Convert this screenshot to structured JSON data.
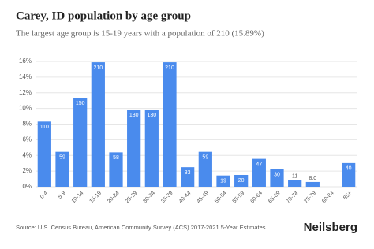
{
  "chart_data": {
    "type": "bar",
    "title": "Carey, ID population by age group",
    "subtitle": "The largest age group is 15-19 years with a population of 210 (15.89%)",
    "categories": [
      "0-4",
      "5-9",
      "10-14",
      "15-19",
      "20-24",
      "25-29",
      "30-34",
      "35-39",
      "40-44",
      "45-49",
      "50-54",
      "55-59",
      "60-64",
      "65-69",
      "70-74",
      "75-79",
      "80-84",
      "85+"
    ],
    "values": [
      8.32,
      4.46,
      11.35,
      15.89,
      4.39,
      9.84,
      9.84,
      15.89,
      2.5,
      4.46,
      1.44,
      1.51,
      3.56,
      2.27,
      0.83,
      0.61,
      0,
      3.03
    ],
    "value_labels": [
      "110",
      "59",
      "150",
      "210",
      "58",
      "130",
      "130",
      "210",
      "33",
      "59",
      "19",
      "20",
      "47",
      "30",
      "11",
      "8.0",
      null,
      "40"
    ],
    "color": "#4a8bed",
    "ylim": [
      0,
      16
    ],
    "yticks": [
      {
        "value": 0,
        "label": "0%"
      },
      {
        "value": 2,
        "label": "2%"
      },
      {
        "value": 4,
        "label": "4%"
      },
      {
        "value": 6,
        "label": "6%"
      },
      {
        "value": 8,
        "label": "8%"
      },
      {
        "value": 10,
        "label": "10%"
      },
      {
        "value": 12,
        "label": "12%"
      },
      {
        "value": 14,
        "label": "14%"
      },
      {
        "value": 16,
        "label": "16%"
      }
    ],
    "grid": true,
    "source": "Source: U.S. Census Bureau, American Community Survey (ACS) 2017-2021 5-Year Estimates",
    "brand": "Neilsberg"
  }
}
